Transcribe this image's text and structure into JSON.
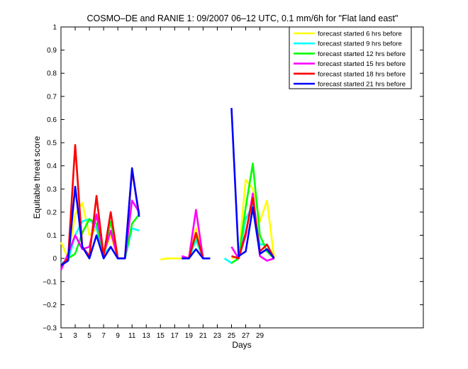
{
  "chart_data": {
    "type": "line",
    "title": "COSMO–DE and RANIE 1: 09/2007 06–12 UTC, 0.1 mm/6h for \"Flat land east\"",
    "xlabel": "Days",
    "ylabel": "Equitable threat score",
    "xlim": [
      1,
      52
    ],
    "ylim": [
      -0.3,
      1
    ],
    "xticks": [
      1,
      3,
      5,
      7,
      9,
      11,
      13,
      15,
      17,
      19,
      21,
      23,
      25,
      27,
      29
    ],
    "yticks": [
      -0.3,
      -0.2,
      -0.1,
      0,
      0.1,
      0.2,
      0.3,
      0.4,
      0.5,
      0.6,
      0.7,
      0.8,
      0.9,
      1
    ],
    "ytick_labels": [
      "−0.3",
      "−0.2",
      "−0.1",
      "0",
      "0.1",
      "0.2",
      "0.3",
      "0.4",
      "0.5",
      "0.6",
      "0.7",
      "0.8",
      "0.9",
      "1"
    ],
    "legend_position": "top-right",
    "grid": false,
    "series": [
      {
        "name": "forecast started 6 hrs before",
        "color": "#ffff00",
        "x": [
          1,
          2,
          3,
          4,
          5,
          6,
          7,
          8,
          9,
          10,
          11,
          12,
          null,
          15,
          16,
          17,
          18,
          19,
          20,
          21,
          22,
          null,
          25,
          26,
          27,
          28,
          29,
          30,
          31
        ],
        "y": [
          0.07,
          0.0,
          0.19,
          0.24,
          0.1,
          0.13,
          0.02,
          0.1,
          0.0,
          0.0,
          0.13,
          0.12,
          null,
          -0.005,
          0.0,
          0.0,
          0.0,
          0.0,
          0.13,
          0.0,
          0.0,
          null,
          0.0,
          0.01,
          0.34,
          0.3,
          0.16,
          0.25,
          0.0
        ]
      },
      {
        "name": "forecast started 9 hrs before",
        "color": "#00ffff",
        "x": [
          1,
          2,
          3,
          4,
          5,
          6,
          7,
          8,
          9,
          10,
          11,
          12,
          null,
          18,
          19,
          20,
          21,
          22,
          null,
          24,
          25,
          26,
          27,
          28,
          29,
          30,
          31
        ],
        "y": [
          -0.02,
          -0.01,
          0.1,
          0.16,
          0.17,
          0.13,
          0.02,
          0.05,
          0.0,
          0.0,
          0.13,
          0.12,
          null,
          0.0,
          0.0,
          0.08,
          0.0,
          0.0,
          null,
          0.0,
          -0.02,
          0.0,
          0.17,
          0.23,
          0.06,
          0.06,
          0.0
        ]
      },
      {
        "name": "forecast started 12 hrs before",
        "color": "#00ff00",
        "x": [
          1,
          2,
          3,
          4,
          5,
          6,
          7,
          8,
          9,
          10,
          11,
          12,
          null,
          19,
          20,
          21,
          null,
          25,
          26,
          27,
          28,
          29,
          30,
          31
        ],
        "y": [
          -0.03,
          0.0,
          0.02,
          0.11,
          0.17,
          0.15,
          0.02,
          0.16,
          0.0,
          0.0,
          0.15,
          0.19,
          null,
          0.0,
          0.1,
          0.0,
          null,
          -0.02,
          0.0,
          0.22,
          0.41,
          0.1,
          0.03,
          0.0
        ]
      },
      {
        "name": "forecast started 15 hrs before",
        "color": "#ff00ff",
        "x": [
          1,
          2,
          3,
          4,
          5,
          6,
          7,
          8,
          9,
          10,
          11,
          12,
          null,
          18,
          19,
          20,
          21,
          null,
          25,
          26,
          27,
          28,
          29,
          30,
          31
        ],
        "y": [
          -0.05,
          0.02,
          0.1,
          0.04,
          0.05,
          0.19,
          0.02,
          0.12,
          0.0,
          0.0,
          0.25,
          0.2,
          null,
          0.01,
          0.0,
          0.21,
          0.0,
          null,
          0.05,
          0.0,
          0.1,
          0.28,
          0.01,
          -0.01,
          0.0
        ]
      },
      {
        "name": "forecast started 18 hrs before",
        "color": "#ff0000",
        "x": [
          1,
          2,
          3,
          4,
          5,
          6,
          7,
          8,
          9,
          10,
          11,
          12,
          null,
          19,
          20,
          21,
          null,
          25,
          26,
          27,
          28,
          29,
          30,
          31
        ],
        "y": [
          -0.03,
          0.0,
          0.49,
          0.05,
          0.01,
          0.27,
          0.01,
          0.2,
          0.0,
          0.0,
          0.38,
          0.19,
          null,
          0.0,
          0.11,
          0.0,
          null,
          0.01,
          0.0,
          0.11,
          0.26,
          0.03,
          0.06,
          0.0
        ]
      },
      {
        "name": "forecast started 21 hrs before",
        "color": "#0000ff",
        "x": [
          1,
          2,
          3,
          4,
          5,
          6,
          7,
          8,
          9,
          10,
          11,
          12,
          null,
          18,
          19,
          20,
          21,
          22,
          null,
          25,
          26,
          27,
          28,
          29,
          30,
          31
        ],
        "y": [
          -0.03,
          -0.01,
          0.31,
          0.05,
          0.0,
          0.1,
          0.0,
          0.05,
          0.0,
          0.0,
          0.39,
          0.18,
          null,
          0.0,
          0.0,
          0.04,
          0.0,
          0.0,
          null,
          0.65,
          0.01,
          0.03,
          0.22,
          0.02,
          0.04,
          0.0
        ]
      }
    ]
  }
}
